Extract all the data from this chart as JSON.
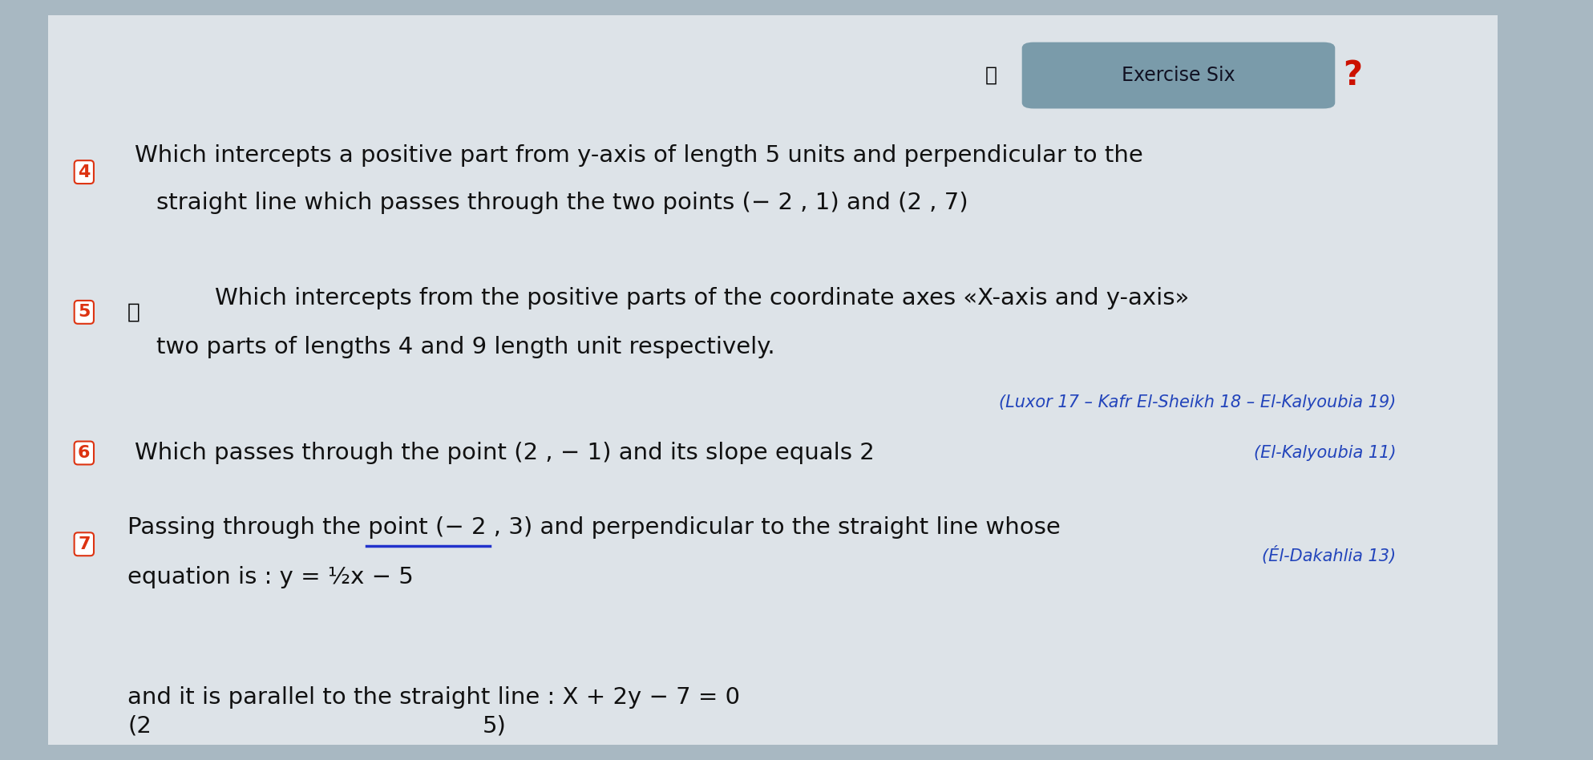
{
  "bg_outer": "#a8b8c2",
  "bg_page": "#dde3e8",
  "title_box_bg": "#7a9baa",
  "title_text": "Exercise Six",
  "title_color": "#111122",
  "qmark_color": "#cc1100",
  "num_color": "#dd3311",
  "text_color": "#111111",
  "source_color": "#2244bb",
  "underline_color": "#2233cc",
  "q4_text1": "Which intercepts a positive part from y-axis of length 5 units and perpendicular to the",
  "q4_text2": "straight line which passes through the two points (− 2 , 1) and (2 , 7)",
  "q5_text1": "Which intercepts from the positive parts of the coordinate axes «X-axis and y-axis»",
  "q5_text2": "two parts of lengths 4 and 9 length unit respectively.",
  "q5_source": "(Luxor 17 – Kafr El-Sheikh 18 – El-Kalyoubia 19)",
  "q6_text": "Which passes through the point (2 , − 1) and its slope equals 2",
  "q6_source": "(El-Kalyoubia 11)",
  "q7_text1": "Passing through the point (− 2 , 3) and perpendicular to the straight line whose",
  "q7_text2": "equation is : y = ½x − 5",
  "q7_source": "(Él-Dakahlia 13)",
  "last_text1": "and it is parallel to the straight line : X + 2y − 7 = 0",
  "main_fontsize": 21,
  "small_fontsize": 15,
  "num_fontsize": 16
}
